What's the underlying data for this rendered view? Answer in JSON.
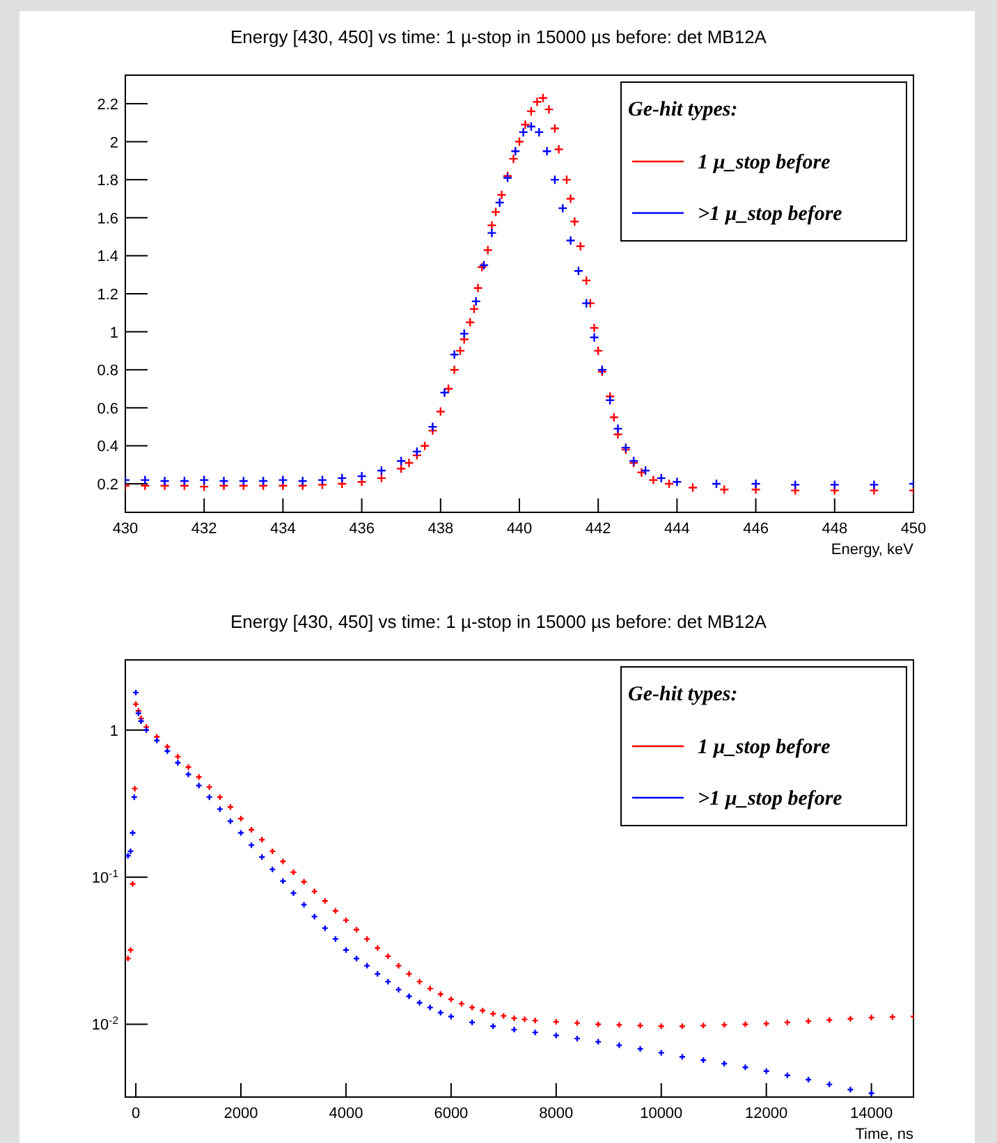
{
  "chart_data": [
    {
      "type": "scatter",
      "title": "Energy [430, 450] vs time: 1 µ-stop in 15000 µs before: det MB12A",
      "xlabel": "Energy, keV",
      "legend_title": "Ge-hit types:",
      "legend": "top right",
      "marker": "cross",
      "grid": false,
      "xlim": [
        430,
        450
      ],
      "xticks": [
        430,
        432,
        434,
        436,
        438,
        440,
        442,
        444,
        446,
        448,
        450
      ],
      "ylim": [
        0.05,
        2.35
      ],
      "yticks": [
        0.2,
        0.4,
        0.6,
        0.8,
        1,
        1.2,
        1.4,
        1.6,
        1.8,
        2,
        2.2
      ],
      "series": [
        {
          "name": "1 µ_stop before",
          "color": "#ff0000",
          "x": [
            430,
            430.5,
            431,
            431.5,
            432,
            432.5,
            433,
            433.5,
            434,
            434.5,
            435,
            435.5,
            436,
            436.5,
            437,
            437.2,
            437.4,
            437.6,
            437.8,
            438,
            438.2,
            438.35,
            438.5,
            438.6,
            438.75,
            438.85,
            438.95,
            439.05,
            439.2,
            439.3,
            439.4,
            439.55,
            439.7,
            439.85,
            440,
            440.15,
            440.3,
            440.45,
            440.6,
            440.75,
            440.9,
            441,
            441.2,
            441.3,
            441.4,
            441.55,
            441.7,
            441.8,
            441.9,
            442,
            442.1,
            442.3,
            442.4,
            442.5,
            442.7,
            442.9,
            443.1,
            443.4,
            443.8,
            444.4,
            445.2,
            446,
            447,
            448,
            449,
            450
          ],
          "values": [
            0.19,
            0.19,
            0.19,
            0.19,
            0.185,
            0.19,
            0.19,
            0.19,
            0.19,
            0.19,
            0.195,
            0.2,
            0.21,
            0.23,
            0.28,
            0.31,
            0.35,
            0.4,
            0.48,
            0.58,
            0.7,
            0.8,
            0.9,
            0.96,
            1.05,
            1.12,
            1.23,
            1.34,
            1.43,
            1.56,
            1.63,
            1.72,
            1.82,
            1.91,
            2.0,
            2.09,
            2.16,
            2.21,
            2.23,
            2.17,
            2.07,
            1.96,
            1.8,
            1.7,
            1.58,
            1.45,
            1.27,
            1.15,
            1.02,
            0.9,
            0.79,
            0.66,
            0.55,
            0.46,
            0.38,
            0.31,
            0.26,
            0.22,
            0.2,
            0.18,
            0.17,
            0.17,
            0.165,
            0.165,
            0.165,
            0.165
          ]
        },
        {
          "name": ">1 µ_stop before",
          "color": "#0000ff",
          "x": [
            430,
            430.5,
            431,
            431.5,
            432,
            432.5,
            433,
            433.5,
            434,
            434.5,
            435,
            435.5,
            436,
            436.5,
            437,
            437.4,
            437.8,
            438.1,
            438.35,
            438.6,
            438.9,
            439.1,
            439.3,
            439.5,
            439.7,
            439.9,
            440.1,
            440.3,
            440.5,
            440.7,
            440.9,
            441.1,
            441.3,
            441.5,
            441.7,
            441.9,
            442.1,
            442.3,
            442.5,
            442.7,
            442.9,
            443.2,
            443.6,
            444,
            445,
            446,
            447,
            448,
            449,
            450
          ],
          "values": [
            0.22,
            0.22,
            0.215,
            0.215,
            0.22,
            0.215,
            0.215,
            0.215,
            0.22,
            0.215,
            0.22,
            0.23,
            0.24,
            0.27,
            0.32,
            0.37,
            0.5,
            0.68,
            0.88,
            0.99,
            1.16,
            1.35,
            1.52,
            1.68,
            1.81,
            1.95,
            2.05,
            2.08,
            2.05,
            1.95,
            1.8,
            1.65,
            1.48,
            1.32,
            1.15,
            0.97,
            0.8,
            0.64,
            0.49,
            0.39,
            0.32,
            0.27,
            0.23,
            0.21,
            0.2,
            0.2,
            0.195,
            0.195,
            0.195,
            0.2
          ]
        }
      ]
    },
    {
      "type": "scatter",
      "title": "Energy [430, 450] vs time: 1 µ-stop in 15000 µs before: det MB12A",
      "xlabel": "Time, ns",
      "legend_title": "Ge-hit types:",
      "legend": "top right",
      "marker": "cross",
      "grid": false,
      "log": "y",
      "xlim": [
        -200,
        14800
      ],
      "xticks": [
        0,
        2000,
        4000,
        6000,
        8000,
        10000,
        12000,
        14000
      ],
      "ylim": [
        0.0032,
        3
      ],
      "yticks": [
        {
          "value": 0.01,
          "label": "10$^{-2}$"
        },
        {
          "value": 0.1,
          "label": "10$^{-1}$"
        },
        1
      ],
      "series": [
        {
          "name": "1 µ_stop before",
          "color": "#ff0000",
          "x": [
            -150,
            -100,
            -60,
            -20,
            0,
            50,
            100,
            200,
            400,
            600,
            800,
            1000,
            1200,
            1400,
            1600,
            1800,
            2000,
            2200,
            2400,
            2600,
            2800,
            3000,
            3200,
            3400,
            3600,
            3800,
            4000,
            4200,
            4400,
            4600,
            4800,
            5000,
            5200,
            5400,
            5600,
            5800,
            6000,
            6200,
            6400,
            6600,
            6800,
            7000,
            7200,
            7400,
            7600,
            8000,
            8400,
            8800,
            9200,
            9600,
            10000,
            10400,
            10800,
            11200,
            11600,
            12000,
            12400,
            12800,
            13200,
            13600,
            14000,
            14400,
            14800
          ],
          "values": [
            0.028,
            0.032,
            0.09,
            0.4,
            1.5,
            1.35,
            1.2,
            1.05,
            0.9,
            0.77,
            0.66,
            0.56,
            0.48,
            0.41,
            0.35,
            0.3,
            0.25,
            0.21,
            0.18,
            0.15,
            0.128,
            0.108,
            0.093,
            0.08,
            0.069,
            0.059,
            0.051,
            0.044,
            0.038,
            0.033,
            0.029,
            0.025,
            0.022,
            0.0195,
            0.0175,
            0.016,
            0.0148,
            0.0138,
            0.013,
            0.0124,
            0.0118,
            0.0114,
            0.011,
            0.0108,
            0.0106,
            0.0104,
            0.0102,
            0.01,
            0.0099,
            0.0098,
            0.0097,
            0.0097,
            0.0098,
            0.0099,
            0.01,
            0.0101,
            0.0103,
            0.0105,
            0.0107,
            0.0109,
            0.0111,
            0.0112,
            0.0113
          ]
        },
        {
          "name": ">1 µ_stop before",
          "color": "#0000ff",
          "x": [
            -150,
            -100,
            -60,
            -30,
            0,
            50,
            100,
            200,
            400,
            600,
            800,
            1000,
            1200,
            1400,
            1600,
            1800,
            2000,
            2200,
            2400,
            2600,
            2800,
            3000,
            3200,
            3400,
            3600,
            3800,
            4000,
            4200,
            4400,
            4600,
            4800,
            5000,
            5200,
            5400,
            5600,
            5800,
            6000,
            6400,
            6800,
            7200,
            7600,
            8000,
            8400,
            8800,
            9200,
            9600,
            10000,
            10400,
            10800,
            11200,
            11600,
            12000,
            12400,
            12800,
            13200,
            13600,
            14000
          ],
          "values": [
            0.14,
            0.15,
            0.2,
            0.35,
            1.8,
            1.3,
            1.15,
            1.0,
            0.85,
            0.72,
            0.6,
            0.5,
            0.42,
            0.35,
            0.29,
            0.24,
            0.2,
            0.165,
            0.137,
            0.113,
            0.094,
            0.078,
            0.065,
            0.054,
            0.045,
            0.038,
            0.032,
            0.028,
            0.025,
            0.022,
            0.0195,
            0.0172,
            0.0155,
            0.014,
            0.013,
            0.012,
            0.0113,
            0.0103,
            0.0097,
            0.0092,
            0.0088,
            0.0084,
            0.008,
            0.0076,
            0.0072,
            0.0068,
            0.0064,
            0.006,
            0.0057,
            0.0054,
            0.0051,
            0.0048,
            0.0045,
            0.0042,
            0.0039,
            0.0036,
            0.0034
          ]
        }
      ]
    }
  ]
}
